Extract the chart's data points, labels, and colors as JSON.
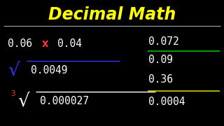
{
  "title": "Decimal Math",
  "title_color": "#FFFF00",
  "background_color": "#000000",
  "text_color": "#FFFFFF",
  "underline_color": "#AAAAAA",
  "multiply_left": "0.06",
  "multiply_op": "x",
  "multiply_op_color": "#FF3333",
  "multiply_right": "0.04",
  "sqrt_arg": "0.0049",
  "sqrt_color": "#3333FF",
  "cbrt_index": "3",
  "cbrt_arg": "0.000027",
  "cbrt_index_color": "#FF3333",
  "div1_num": "0.072",
  "div1_den": "0.09",
  "div1_line_color": "#00BB00",
  "div2_num": "0.36",
  "div2_den": "0.0004",
  "div2_line_color": "#CCCC00",
  "fs_title": 17,
  "fs_main": 10.5
}
